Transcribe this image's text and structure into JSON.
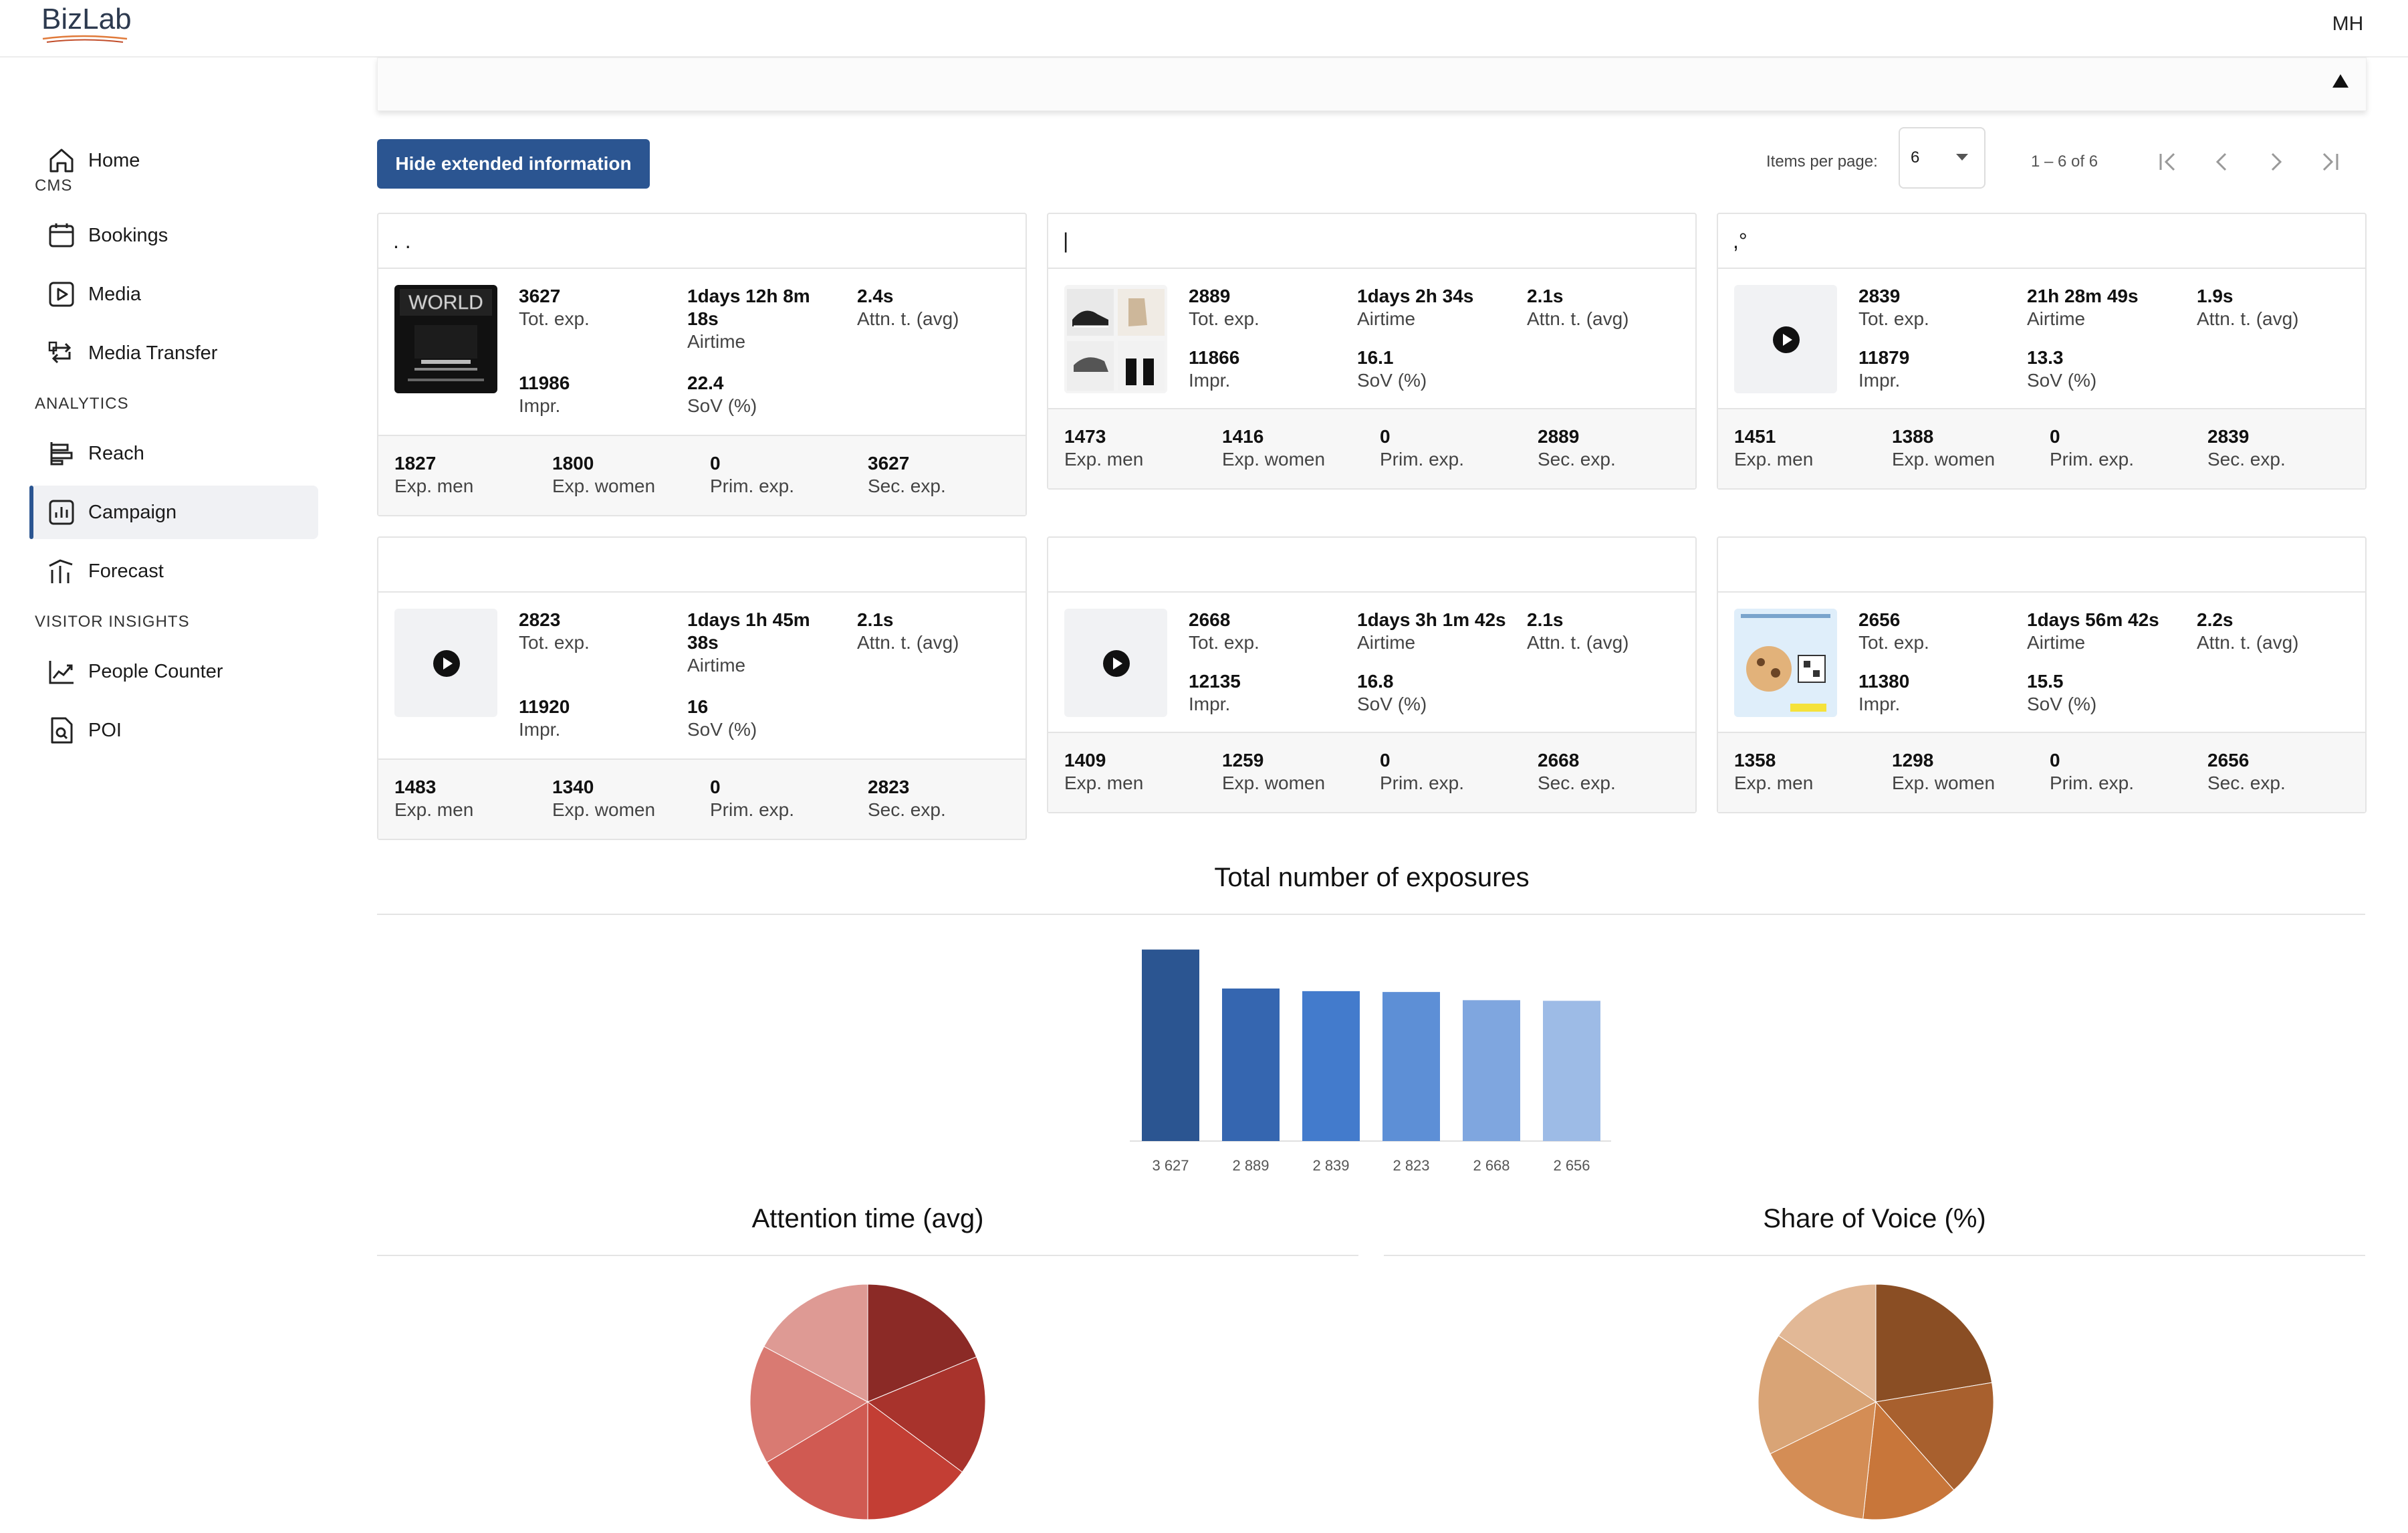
{
  "app": {
    "logo": "BizLab",
    "avatar": "MH"
  },
  "sidebar": {
    "items": [
      {
        "label": "Home",
        "icon": "home-icon"
      },
      {
        "section": "CMS"
      },
      {
        "label": "Bookings",
        "icon": "calendar-icon"
      },
      {
        "label": "Media",
        "icon": "media-play-icon"
      },
      {
        "label": "Media Transfer",
        "icon": "transfer-icon"
      },
      {
        "section": "ANALYTICS"
      },
      {
        "label": "Reach",
        "icon": "reach-icon"
      },
      {
        "label": "Campaign",
        "icon": "bar-chart-icon",
        "active": true
      },
      {
        "label": "Forecast",
        "icon": "forecast-icon"
      },
      {
        "section": "VISITOR INSIGHTS"
      },
      {
        "label": "People Counter",
        "icon": "trend-icon"
      },
      {
        "label": "POI",
        "icon": "poi-icon"
      }
    ]
  },
  "toolbar": {
    "hide_button": "Hide extended information",
    "items_per_page_label": "Items per page:",
    "items_per_page_value": "6",
    "range": "1 – 6 of 6"
  },
  "cards": [
    {
      "header": ".                   .",
      "thumb": "world-poster",
      "tot": "3627",
      "tot_l": "Tot. exp.",
      "air": "1days 12h 8m 18s",
      "air_l": "Airtime",
      "attn": "2.4s",
      "attn_l": "Attn. t. (avg)",
      "impr": "11986",
      "impr_l": "Impr.",
      "sov": "22.4",
      "sov_l": "SoV (%)",
      "men": "1827",
      "men_l": "Exp. men",
      "women": "1800",
      "women_l": "Exp. women",
      "prim": "0",
      "prim_l": "Prim. exp.",
      "sec": "3627",
      "sec_l": "Sec. exp."
    },
    {
      "header": "|",
      "thumb": "shoes",
      "tot": "2889",
      "tot_l": "Tot. exp.",
      "air": "1days 2h 34s",
      "air_l": "Airtime",
      "attn": "2.1s",
      "attn_l": "Attn. t. (avg)",
      "impr": "11866",
      "impr_l": "Impr.",
      "sov": "16.1",
      "sov_l": "SoV (%)",
      "men": "1473",
      "men_l": "Exp. men",
      "women": "1416",
      "women_l": "Exp. women",
      "prim": "0",
      "prim_l": "Prim. exp.",
      "sec": "2889",
      "sec_l": "Sec. exp."
    },
    {
      "header": ",°",
      "thumb": "play",
      "tot": "2839",
      "tot_l": "Tot. exp.",
      "air": "21h 28m 49s",
      "air_l": "Airtime",
      "attn": "1.9s",
      "attn_l": "Attn. t. (avg)",
      "impr": "11879",
      "impr_l": "Impr.",
      "sov": "13.3",
      "sov_l": "SoV (%)",
      "men": "1451",
      "men_l": "Exp. men",
      "women": "1388",
      "women_l": "Exp. women",
      "prim": "0",
      "prim_l": "Prim. exp.",
      "sec": "2839",
      "sec_l": "Sec. exp."
    },
    {
      "header": "",
      "thumb": "play",
      "tot": "2823",
      "tot_l": "Tot. exp.",
      "air": "1days 1h 45m 38s",
      "air_l": "Airtime",
      "attn": "2.1s",
      "attn_l": "Attn. t. (avg)",
      "impr": "11920",
      "impr_l": "Impr.",
      "sov": "16",
      "sov_l": "SoV (%)",
      "men": "1483",
      "men_l": "Exp. men",
      "women": "1340",
      "women_l": "Exp. women",
      "prim": "0",
      "prim_l": "Prim. exp.",
      "sec": "2823",
      "sec_l": "Sec. exp."
    },
    {
      "header": "",
      "thumb": "play",
      "tot": "2668",
      "tot_l": "Tot. exp.",
      "air": "1days 3h 1m 42s",
      "air_l": "Airtime",
      "attn": "2.1s",
      "attn_l": "Attn. t. (avg)",
      "impr": "12135",
      "impr_l": "Impr.",
      "sov": "16.8",
      "sov_l": "SoV (%)",
      "men": "1409",
      "men_l": "Exp. men",
      "women": "1259",
      "women_l": "Exp. women",
      "prim": "0",
      "prim_l": "Prim. exp.",
      "sec": "2668",
      "sec_l": "Sec. exp."
    },
    {
      "header": "",
      "thumb": "poster-dog",
      "tot": "2656",
      "tot_l": "Tot. exp.",
      "air": "1days 56m 42s",
      "air_l": "Airtime",
      "attn": "2.2s",
      "attn_l": "Attn. t. (avg)",
      "impr": "11380",
      "impr_l": "Impr.",
      "sov": "15.5",
      "sov_l": "SoV (%)",
      "men": "1358",
      "men_l": "Exp. men",
      "women": "1298",
      "women_l": "Exp. women",
      "prim": "0",
      "prim_l": "Prim. exp.",
      "sec": "2656",
      "sec_l": "Sec. exp."
    }
  ],
  "chart_data": [
    {
      "type": "bar",
      "title": "Total number of exposures",
      "categories": [
        "3 627",
        "2 889",
        "2 839",
        "2 823",
        "2 668",
        "2 656"
      ],
      "values": [
        3627,
        2889,
        2839,
        2823,
        2668,
        2656
      ],
      "colors": [
        "#2b5591",
        "#3566b0",
        "#437bcc",
        "#5d8fd6",
        "#7fa6df",
        "#9dbbe6"
      ],
      "grid": false
    },
    {
      "type": "pie",
      "title": "Attention time (avg)",
      "values": [
        2.4,
        2.1,
        1.9,
        2.1,
        2.1,
        2.2
      ],
      "colors": [
        "#8b2a26",
        "#a8332c",
        "#c33e34",
        "#d05a52",
        "#d97a72",
        "#de9a94"
      ]
    },
    {
      "type": "pie",
      "title": "Share of Voice (%)",
      "values": [
        22.4,
        16.1,
        13.3,
        16,
        16.8,
        15.5
      ],
      "colors": [
        "#8a4e24",
        "#a8602e",
        "#c8763a",
        "#d48d55",
        "#d9a476",
        "#e2b896"
      ]
    }
  ]
}
